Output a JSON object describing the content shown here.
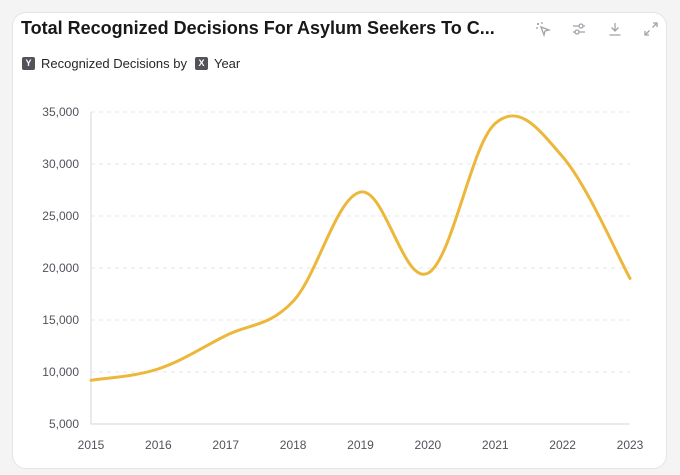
{
  "header": {
    "title": "Total Recognized Decisions For Asylum Seekers To C..."
  },
  "toolbar": {
    "icons": [
      "sparkle-pointer-icon",
      "sliders-icon",
      "download-icon",
      "expand-icon"
    ]
  },
  "legend": {
    "y_badge": "Y",
    "y_label": "Recognized Decisions by",
    "x_badge": "X",
    "x_label": "Year"
  },
  "colors": {
    "line": "#ecb73a",
    "grid": "#e5e7eb",
    "axis": "#d4d4d8"
  },
  "chart_data": {
    "type": "line",
    "x": [
      "2015",
      "2016",
      "2017",
      "2018",
      "2019",
      "2020",
      "2021",
      "2022",
      "2023"
    ],
    "series": [
      {
        "values": [
          9200,
          10300,
          13500,
          16800,
          27300,
          19500,
          33900,
          30700,
          19000
        ]
      }
    ],
    "ylim": [
      5000,
      35000
    ],
    "yticks": [
      5000,
      10000,
      15000,
      20000,
      25000,
      30000,
      35000
    ],
    "ytick_labels": [
      "5,000",
      "10,000",
      "15,000",
      "20,000",
      "25,000",
      "30,000",
      "35,000"
    ],
    "grid": true,
    "smooth": true
  }
}
